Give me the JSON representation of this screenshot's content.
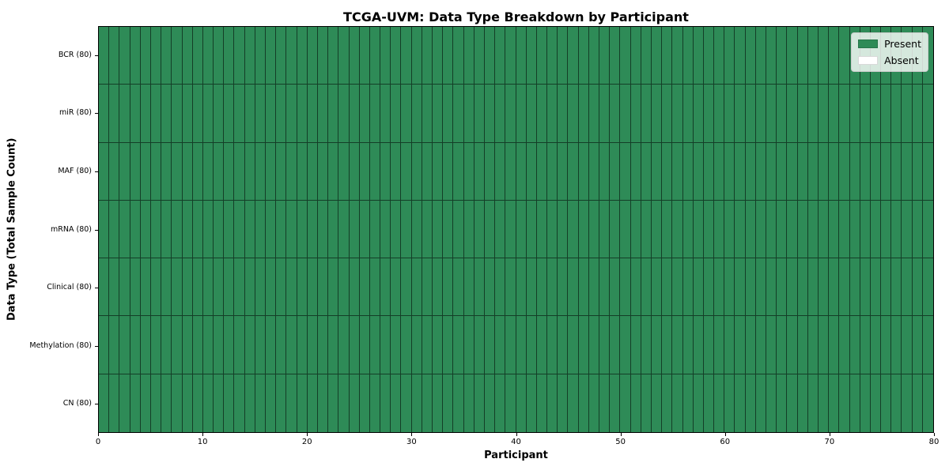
{
  "chart_data": {
    "type": "heatmap",
    "title": "TCGA-UVM: Data Type Breakdown by Participant",
    "xlabel": "Participant",
    "ylabel": "Data Type (Total Sample Count)",
    "xlim": [
      0,
      80
    ],
    "x_ticks": [
      0,
      10,
      20,
      30,
      40,
      50,
      60,
      70,
      80
    ],
    "n_participants": 80,
    "rows": [
      {
        "label": "BCR (80)",
        "data_type": "BCR",
        "total_samples": 80,
        "present_participants": 80,
        "absent_participants": 0
      },
      {
        "label": "miR (80)",
        "data_type": "miR",
        "total_samples": 80,
        "present_participants": 80,
        "absent_participants": 0
      },
      {
        "label": "MAF (80)",
        "data_type": "MAF",
        "total_samples": 80,
        "present_participants": 80,
        "absent_participants": 0
      },
      {
        "label": "mRNA (80)",
        "data_type": "mRNA",
        "total_samples": 80,
        "present_participants": 80,
        "absent_participants": 0
      },
      {
        "label": "Clinical (80)",
        "data_type": "Clinical",
        "total_samples": 80,
        "present_participants": 80,
        "absent_participants": 0
      },
      {
        "label": "Methylation (80)",
        "data_type": "Methylation",
        "total_samples": 80,
        "present_participants": 80,
        "absent_participants": 0
      },
      {
        "label": "CN (80)",
        "data_type": "CN",
        "total_samples": 80,
        "present_participants": 80,
        "absent_participants": 0
      }
    ],
    "legend": {
      "position": "upper right",
      "entries": [
        {
          "label": "Present",
          "color": "#2e8b57"
        },
        {
          "label": "Absent",
          "color": "#ffffff"
        }
      ]
    },
    "colors": {
      "present": "#2e8b57",
      "absent": "#ffffff",
      "cell_border": "rgba(0,0,0,0.55)",
      "axis": "#000000"
    },
    "grid_lines": true
  }
}
